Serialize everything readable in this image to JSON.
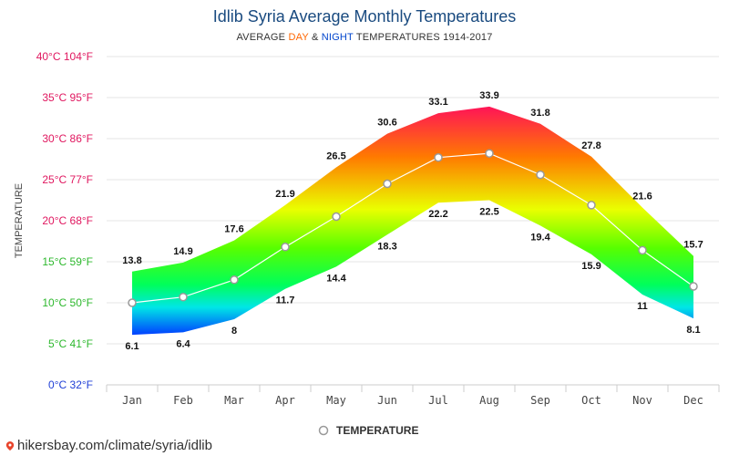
{
  "page": {
    "title": "Idlib Syria Average Monthly Temperatures",
    "subtitle_prefix": "AVERAGE ",
    "subtitle_day": "DAY",
    "subtitle_amp": " & ",
    "subtitle_night": "NIGHT",
    "subtitle_suffix": " TEMPERATURES 1914-2017",
    "footer_url": "hikersbay.com/climate/syria/idlib"
  },
  "colors": {
    "title": "#1a4b80",
    "day": "#ff6600",
    "night": "#0044cc",
    "grid": "#e6e6e6"
  },
  "chart_data": {
    "type": "area",
    "title": "Idlib Syria Average Monthly Temperatures",
    "ylabel": "TEMPERATURE",
    "ylim": [
      0,
      40
    ],
    "grid": true,
    "legend_position": "bottom",
    "categories": [
      "Jan",
      "Feb",
      "Mar",
      "Apr",
      "May",
      "Jun",
      "Jul",
      "Aug",
      "Sep",
      "Oct",
      "Nov",
      "Dec"
    ],
    "y_ticks": [
      {
        "value": 0,
        "label": "0°C 32°F",
        "color": "#1f3fd6"
      },
      {
        "value": 5,
        "label": "5°C 41°F",
        "color": "#2db82d"
      },
      {
        "value": 10,
        "label": "10°C 50°F",
        "color": "#2db82d"
      },
      {
        "value": 15,
        "label": "15°C 59°F",
        "color": "#2db82d"
      },
      {
        "value": 20,
        "label": "20°C 68°F",
        "color": "#e0175f"
      },
      {
        "value": 25,
        "label": "25°C 77°F",
        "color": "#e0175f"
      },
      {
        "value": 30,
        "label": "30°C 86°F",
        "color": "#e0175f"
      },
      {
        "value": 35,
        "label": "35°C 95°F",
        "color": "#e0175f"
      },
      {
        "value": 40,
        "label": "40°C 104°F",
        "color": "#e0175f"
      }
    ],
    "series": [
      {
        "name": "DAY",
        "values": [
          13.8,
          14.9,
          17.6,
          21.9,
          26.5,
          30.6,
          33.1,
          33.9,
          31.8,
          27.8,
          21.6,
          15.7
        ]
      },
      {
        "name": "NIGHT",
        "values": [
          6.1,
          6.4,
          8,
          11.7,
          14.4,
          18.3,
          22.2,
          22.5,
          19.4,
          15.9,
          11,
          8.1
        ]
      },
      {
        "name": "TEMPERATURE",
        "values": [
          10,
          10.7,
          12.8,
          16.8,
          20.5,
          24.5,
          27.7,
          28.2,
          25.6,
          21.9,
          16.4,
          12
        ]
      }
    ],
    "day_labels": [
      "13.8",
      "14.9",
      "17.6",
      "21.9",
      "26.5",
      "30.6",
      "33.1",
      "33.9",
      "31.8",
      "27.8",
      "21.6",
      "15.7"
    ],
    "night_labels": [
      "6.1",
      "6.4",
      "8",
      "11.7",
      "14.4",
      "18.3",
      "22.2",
      "22.5",
      "19.4",
      "15.9",
      "11",
      "8.1"
    ],
    "legend": "TEMPERATURE"
  }
}
